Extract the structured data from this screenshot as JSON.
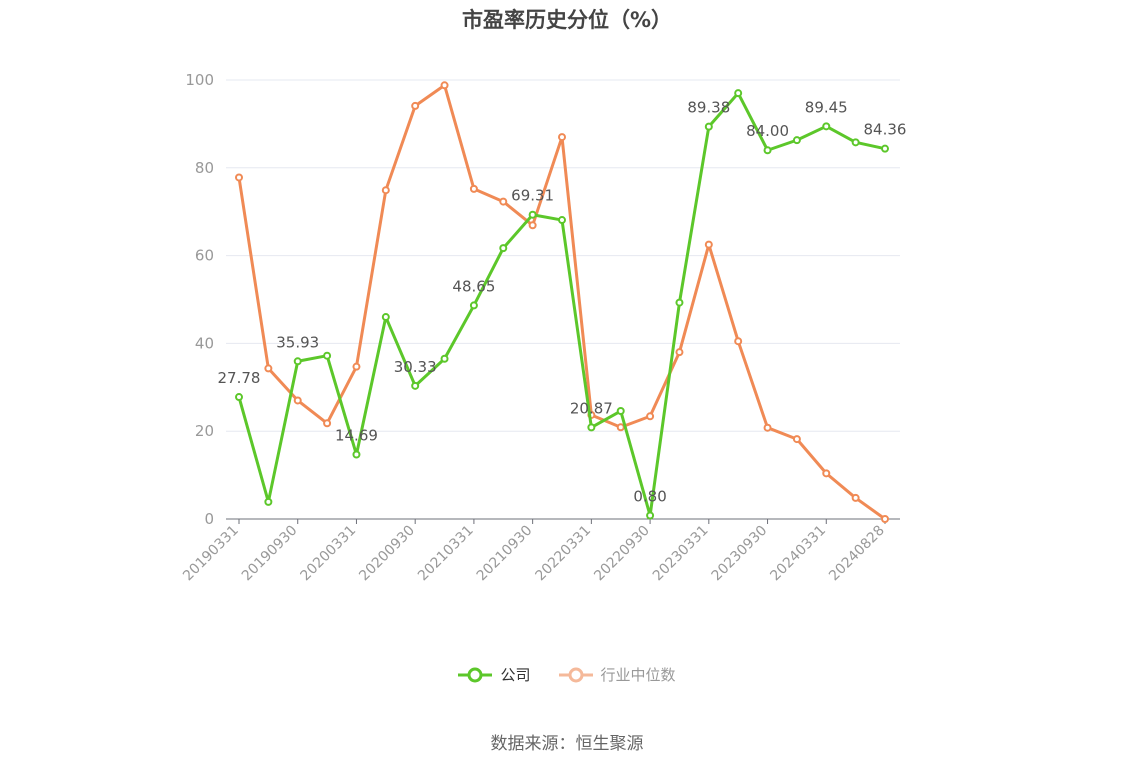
{
  "chart_data": {
    "type": "line",
    "title": "市盈率历史分位（%）",
    "xlabel": "",
    "ylabel": "",
    "ylim": [
      0,
      100
    ],
    "yticks": [
      0,
      20,
      40,
      60,
      80,
      100
    ],
    "grid": true,
    "legend_position": "bottom-center",
    "x": [
      "20190331",
      "20190630",
      "20190930",
      "20191231",
      "20200331",
      "20200630",
      "20200930",
      "20201231",
      "20210331",
      "20210630",
      "20210930",
      "20211231",
      "20220331",
      "20220630",
      "20220930",
      "20221231",
      "20230331",
      "20230630",
      "20230930",
      "20231231",
      "20240331",
      "20240630",
      "20240828"
    ],
    "xtick_labels": [
      "20190331",
      "20190930",
      "20200331",
      "20200930",
      "20210331",
      "20210930",
      "20220331",
      "20220930",
      "20230331",
      "20230930",
      "20240331",
      "20240828"
    ],
    "series": [
      {
        "name": "公司",
        "color": "#5cc72a",
        "values": [
          27.78,
          3.9,
          35.93,
          37.2,
          14.69,
          46.0,
          30.33,
          36.5,
          48.65,
          61.7,
          69.31,
          68.1,
          20.87,
          24.6,
          0.8,
          49.3,
          89.38,
          97.0,
          84.0,
          86.3,
          89.45,
          85.8,
          84.36
        ],
        "labels": {
          "0": "27.78",
          "2": "35.93",
          "4": "14.69",
          "6": "30.33",
          "8": "48.65",
          "10": "69.31",
          "12": "20.87",
          "14": "0.80",
          "16": "89.38",
          "18": "84.00",
          "20": "89.45",
          "22": "84.36"
        }
      },
      {
        "name": "行业中位数",
        "color": "#f08a55",
        "values": [
          77.8,
          34.3,
          27.0,
          21.8,
          34.7,
          74.9,
          94.1,
          98.8,
          75.2,
          72.3,
          66.9,
          87.0,
          23.7,
          20.9,
          23.4,
          38.0,
          62.5,
          40.5,
          20.8,
          18.2,
          10.4,
          4.8,
          0.0
        ]
      }
    ]
  },
  "legend": {
    "company": "公司",
    "industry": "行业中位数"
  },
  "source": "数据来源：恒生聚源"
}
